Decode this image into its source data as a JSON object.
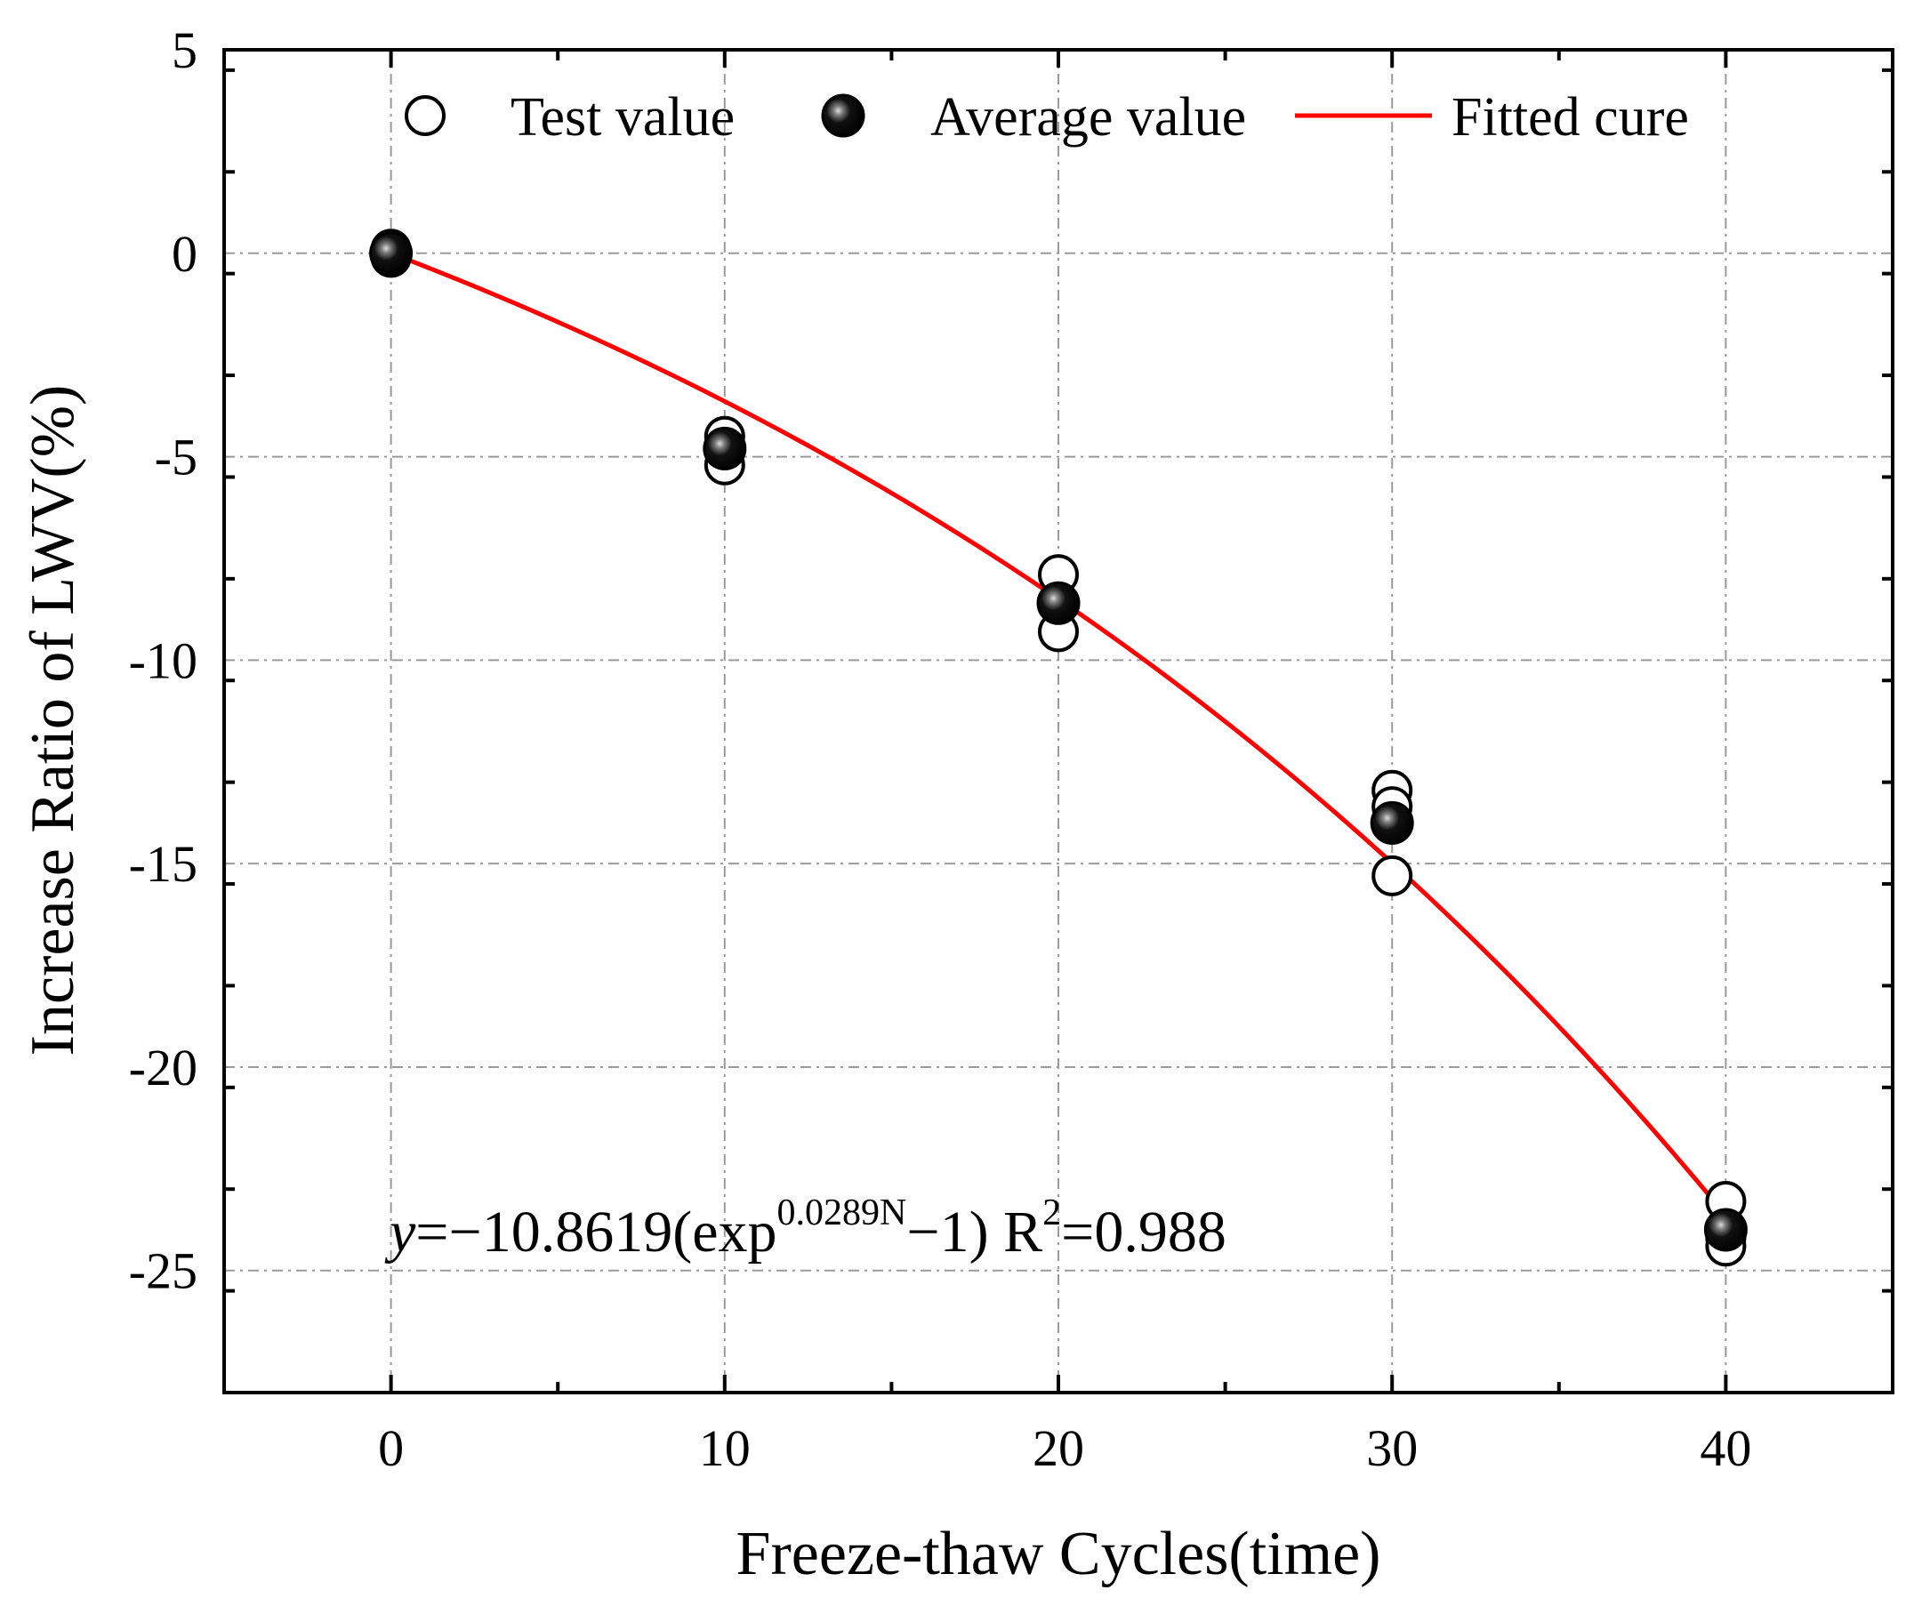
{
  "chart_data": {
    "type": "scatter",
    "xlabel": "Freeze-thaw Cycles(time)",
    "ylabel": "Increase Ratio of LWV(%)",
    "xlim": [
      -5,
      45
    ],
    "ylim": [
      -28,
      5
    ],
    "xticks": [
      0,
      10,
      20,
      30,
      40
    ],
    "yticks": [
      5,
      0,
      -5,
      -10,
      -15,
      -20,
      -25
    ],
    "grid": true,
    "legend_position": "top",
    "series": [
      {
        "name": "Test value",
        "marker": "open-circle",
        "x": [
          0,
          0,
          0,
          10,
          10,
          10,
          20,
          20,
          20,
          30,
          30,
          30,
          40,
          40,
          40
        ],
        "y": [
          0.1,
          0.0,
          -0.1,
          -4.5,
          -4.8,
          -5.2,
          -7.9,
          -8.6,
          -9.3,
          -13.2,
          -13.6,
          -15.3,
          -23.3,
          -24.2,
          -24.4
        ]
      },
      {
        "name": "Average value",
        "marker": "filled-circle",
        "x": [
          0,
          10,
          20,
          30,
          40
        ],
        "y": [
          0.0,
          -4.8,
          -8.6,
          -14.0,
          -24.0
        ]
      },
      {
        "name": "Fitted cure",
        "marker": "line",
        "color": "#ff0000",
        "formula": {
          "a": -10.8619,
          "b": 0.0289,
          "x_range": [
            0,
            40
          ]
        }
      }
    ],
    "annotation": {
      "y_prefix": "y",
      "main": "=−10.8619(exp",
      "exponent": "0.0289N",
      "tail": "−1)  R",
      "r2_super": "2",
      "r2_value": "=0.988"
    }
  }
}
